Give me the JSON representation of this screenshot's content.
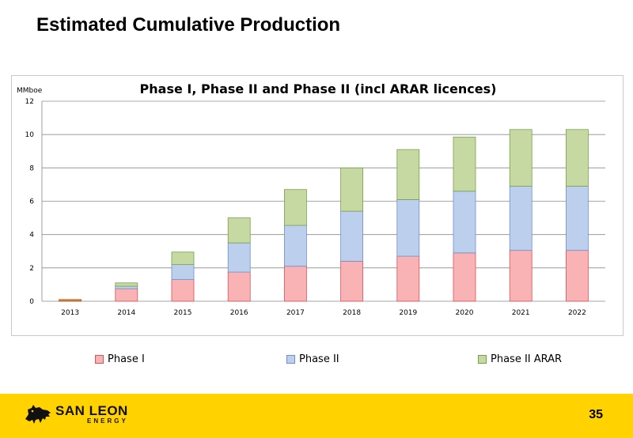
{
  "slide": {
    "title": "Estimated Cumulative Production",
    "page_number": "35"
  },
  "logo": {
    "name": "SAN LEON",
    "sub": "ENERGY",
    "icon": "lion-icon"
  },
  "colors": {
    "phase1": "#f9b3b5",
    "phase1_edge": "#d9535a",
    "phase2": "#bcd0ee",
    "phase2_edge": "#6f8fc8",
    "arar": "#c6d9a3",
    "arar_edge": "#77a04a",
    "footer": "#ffd200",
    "bar_2013": "#d9823b"
  },
  "chart_data": {
    "type": "bar",
    "stacked": true,
    "title": "Phase I, Phase II and Phase II (incl ARAR licences)",
    "ylabel": "MMboe",
    "xlabel": "",
    "ylim": [
      0,
      12
    ],
    "yticks": [
      "0",
      "2",
      "4",
      "6",
      "8",
      "10",
      "12"
    ],
    "grid": true,
    "legend": "bottom",
    "categories": [
      "2013",
      "2014",
      "2015",
      "2016",
      "2017",
      "2018",
      "2019",
      "2020",
      "2021",
      "2022"
    ],
    "series": [
      {
        "name": "Phase I",
        "values": [
          0.1,
          0.75,
          1.3,
          1.75,
          2.1,
          2.4,
          2.7,
          2.9,
          3.05,
          3.05
        ]
      },
      {
        "name": "Phase II",
        "values": [
          0.0,
          0.15,
          0.9,
          1.75,
          2.45,
          3.0,
          3.4,
          3.7,
          3.85,
          3.85
        ]
      },
      {
        "name": "Phase II ARAR",
        "values": [
          0.0,
          0.2,
          0.75,
          1.5,
          2.15,
          2.6,
          3.0,
          3.25,
          3.4,
          3.4
        ]
      }
    ]
  }
}
